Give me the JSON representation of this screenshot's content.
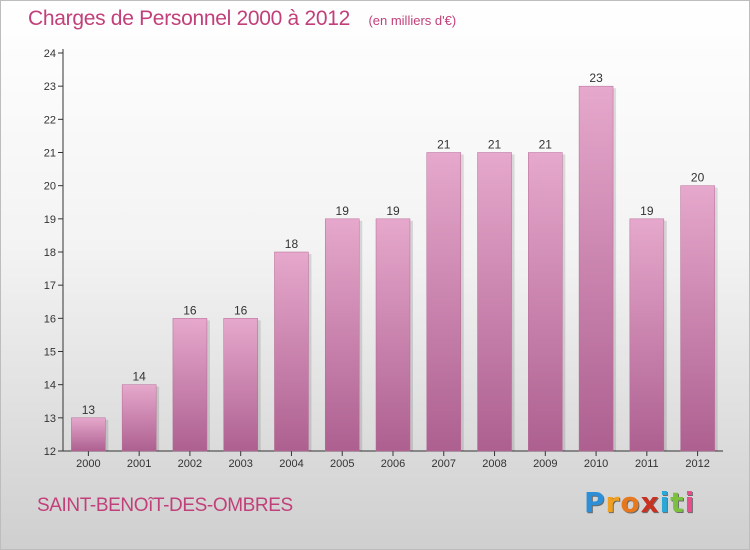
{
  "chart_data": {
    "type": "bar",
    "title": "Charges de Personnel 2000 à 2012",
    "subtitle": "(en milliers d'€)",
    "categories": [
      "2000",
      "2001",
      "2002",
      "2003",
      "2004",
      "2005",
      "2006",
      "2007",
      "2008",
      "2009",
      "2010",
      "2011",
      "2012"
    ],
    "values": [
      13,
      14,
      16,
      16,
      18,
      19,
      19,
      21,
      21,
      21,
      23,
      19,
      20
    ],
    "ylim": [
      12,
      24
    ],
    "yticks": [
      12,
      13,
      14,
      15,
      16,
      17,
      18,
      19,
      20,
      21,
      22,
      23,
      24
    ],
    "grid": false,
    "legend": "none",
    "bar_color": "#d488b0",
    "xlabel": "",
    "ylabel": ""
  },
  "footer": {
    "commune": "SAINT-BENOîT-DES-OMBRES",
    "brand_letters": [
      {
        "char": "P",
        "color": "#2e8fd6"
      },
      {
        "char": "r",
        "color": "#f0a020"
      },
      {
        "char": "o",
        "color": "#e8781e"
      },
      {
        "char": "x",
        "color": "#c83020"
      },
      {
        "char": "i",
        "color": "#2aa8d8"
      },
      {
        "char": "t",
        "color": "#7cc040"
      },
      {
        "char": "i",
        "color": "#e84e8a"
      }
    ]
  }
}
